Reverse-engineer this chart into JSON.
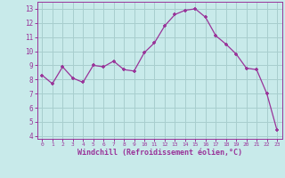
{
  "x": [
    0,
    1,
    2,
    3,
    4,
    5,
    6,
    7,
    8,
    9,
    10,
    11,
    12,
    13,
    14,
    15,
    16,
    17,
    18,
    19,
    20,
    21,
    22,
    23
  ],
  "y": [
    8.3,
    7.7,
    8.9,
    8.1,
    7.8,
    9.0,
    8.9,
    9.3,
    8.7,
    8.6,
    9.9,
    10.6,
    11.8,
    12.6,
    12.9,
    13.0,
    12.4,
    11.1,
    10.5,
    9.8,
    8.8,
    8.7,
    7.0,
    4.4
  ],
  "line_color": "#993399",
  "marker": "+",
  "marker_color": "#993399",
  "bg_color": "#c8eaea",
  "grid_color": "#a8cece",
  "xlabel": "Windchill (Refroidissement éolien,°C)",
  "xlabel_color": "#993399",
  "tick_color": "#993399",
  "ylim": [
    3.8,
    13.5
  ],
  "xlim": [
    -0.5,
    23.5
  ],
  "yticks": [
    4,
    5,
    6,
    7,
    8,
    9,
    10,
    11,
    12,
    13
  ],
  "xticks": [
    0,
    1,
    2,
    3,
    4,
    5,
    6,
    7,
    8,
    9,
    10,
    11,
    12,
    13,
    14,
    15,
    16,
    17,
    18,
    19,
    20,
    21,
    22,
    23
  ]
}
